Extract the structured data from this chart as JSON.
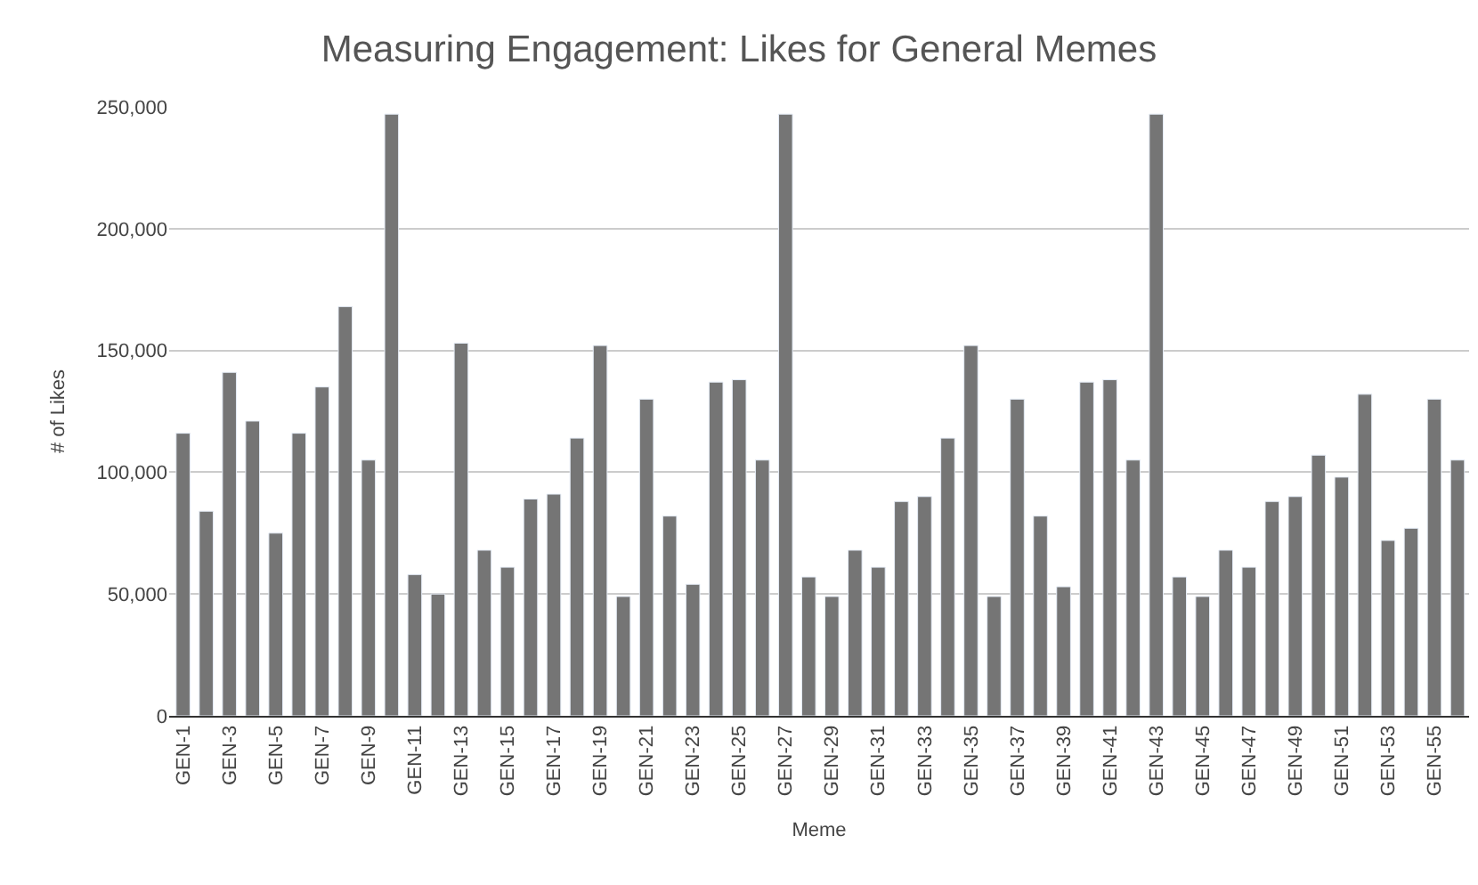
{
  "chart_data": {
    "type": "bar",
    "title": "Measuring Engagement: Likes for General Memes",
    "xlabel": "Meme",
    "ylabel": "# of Likes",
    "categories": [
      "GEN-1",
      null,
      "GEN-3",
      null,
      "GEN-5",
      null,
      "GEN-7",
      null,
      "GEN-9",
      null,
      "GEN-11",
      null,
      "GEN-13",
      null,
      "GEN-15",
      null,
      "GEN-17",
      null,
      "GEN-19",
      null,
      "GEN-21",
      null,
      "GEN-23",
      null,
      "GEN-25",
      null,
      "GEN-27",
      null,
      "GEN-29",
      null,
      "GEN-31",
      null,
      "GEN-33",
      null,
      "GEN-35",
      null,
      "GEN-37",
      null,
      "GEN-39",
      null,
      "GEN-41",
      null,
      "GEN-43",
      null,
      "GEN-45",
      null,
      "GEN-47",
      null,
      "GEN-49",
      null,
      "GEN-51",
      null,
      "GEN-53",
      null,
      "GEN-55",
      null
    ],
    "values": [
      116000,
      84000,
      141000,
      121000,
      75000,
      116000,
      135000,
      168000,
      105000,
      247000,
      58000,
      50000,
      153000,
      68000,
      61000,
      89000,
      91000,
      114000,
      152000,
      49000,
      130000,
      82000,
      54000,
      137000,
      138000,
      105000,
      247000,
      57000,
      49000,
      68000,
      61000,
      88000,
      90000,
      114000,
      152000,
      49000,
      130000,
      82000,
      53000,
      137000,
      138000,
      105000,
      247000,
      57000,
      49000,
      68000,
      61000,
      88000,
      90000,
      107000,
      98000,
      132000,
      72000,
      77000,
      130000,
      105000
    ],
    "color": "#757575",
    "ylim": [
      0,
      250000
    ],
    "yticks": [
      0,
      {
        "value": 50000,
        "label": "50,000"
      },
      {
        "value": 100000,
        "label": "100,000"
      },
      {
        "value": 150000,
        "label": "150,000"
      },
      {
        "value": 200000,
        "label": "200,000"
      },
      {
        "value": 250000,
        "label": "250,000"
      }
    ],
    "grid": "y"
  }
}
